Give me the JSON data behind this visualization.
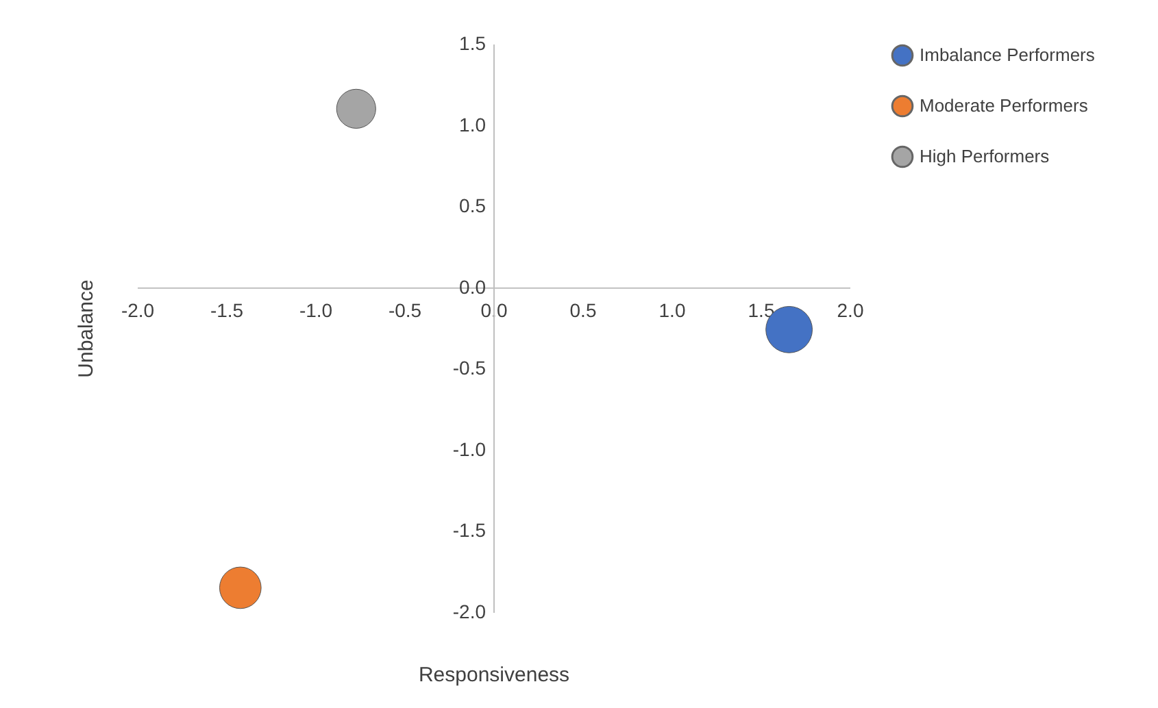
{
  "chart_data": {
    "type": "bubble",
    "xlabel": "Responsiveness",
    "ylabel": "Unbalance",
    "xlim": [
      -2,
      2
    ],
    "ylim": [
      -2,
      1.5
    ],
    "legend": "right",
    "marker": "circle",
    "grid": false,
    "xticks": [
      {
        "value": -2,
        "label": "-2.0"
      },
      {
        "value": -1.5,
        "label": "-1.5"
      },
      {
        "value": -1,
        "label": "-1.0"
      },
      {
        "value": -0.5,
        "label": "-0.5"
      },
      {
        "value": 0,
        "label": "0.0"
      },
      {
        "value": 0.5,
        "label": "0.5"
      },
      {
        "value": 1,
        "label": "1.0"
      },
      {
        "value": 1.5,
        "label": "1.5"
      },
      {
        "value": 2,
        "label": "2.0"
      }
    ],
    "yticks": [
      {
        "value": -2,
        "label": "-2.0"
      },
      {
        "value": -1.5,
        "label": "-1.5"
      },
      {
        "value": -1,
        "label": "-1.0"
      },
      {
        "value": -0.5,
        "label": "-0.5"
      },
      {
        "value": 0,
        "label": "0.0"
      },
      {
        "value": 0.5,
        "label": "0.5"
      },
      {
        "value": 1,
        "label": "1.0"
      },
      {
        "value": 1.5,
        "label": "1.5"
      }
    ],
    "series": [
      {
        "name": "Imbalance Performers",
        "color": "#4472c4",
        "x": [
          1.66
        ],
        "values": [
          -0.26
        ],
        "sizes": [
          1
        ]
      },
      {
        "name": "Moderate Performers",
        "color": "#ed7d31",
        "x": [
          -1.42
        ],
        "values": [
          -1.85
        ],
        "sizes": [
          0.8
        ]
      },
      {
        "name": "High Performers",
        "color": "#a5a5a5",
        "x": [
          -0.77
        ],
        "values": [
          1.1
        ],
        "sizes": [
          0.71
        ]
      }
    ]
  }
}
